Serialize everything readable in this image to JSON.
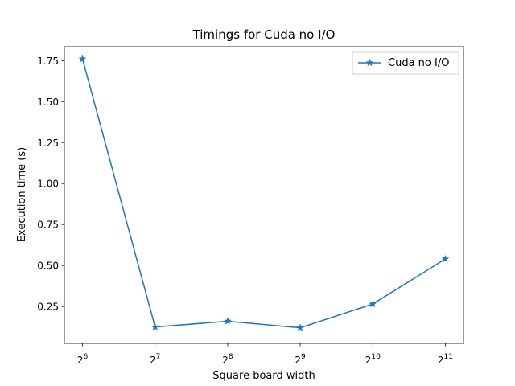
{
  "chart_data": {
    "type": "line",
    "title": "Timings for Cuda no I/O",
    "xlabel": "Square board width",
    "ylabel": "Execution time (s)",
    "x_scale": "log2",
    "x": [
      64,
      128,
      256,
      512,
      1024,
      2048
    ],
    "x_tick_labels": [
      {
        "base": "2",
        "exp": "6"
      },
      {
        "base": "2",
        "exp": "7"
      },
      {
        "base": "2",
        "exp": "8"
      },
      {
        "base": "2",
        "exp": "9"
      },
      {
        "base": "2",
        "exp": "10"
      },
      {
        "base": "2",
        "exp": "11"
      }
    ],
    "ylim": [
      0.025,
      1.835
    ],
    "y_ticks": [
      0.25,
      0.5,
      0.75,
      1.0,
      1.25,
      1.5,
      1.75
    ],
    "y_tick_labels": [
      "0.25",
      "0.50",
      "0.75",
      "1.00",
      "1.25",
      "1.50",
      "1.75"
    ],
    "grid": false,
    "legend_position": "top-right",
    "series": [
      {
        "name": "Cuda no I/O",
        "color": "#1f77b4",
        "marker": "star",
        "values": [
          1.76,
          0.125,
          0.16,
          0.12,
          0.265,
          0.54
        ]
      }
    ]
  }
}
